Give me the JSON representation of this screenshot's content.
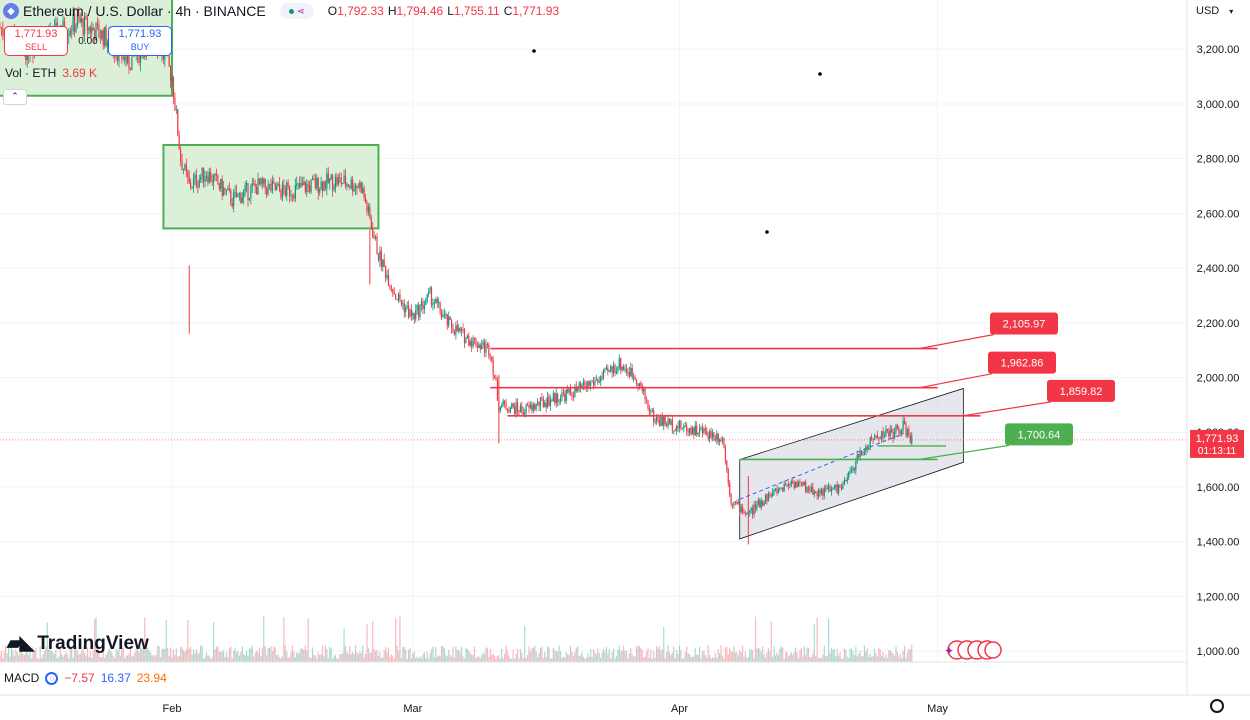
{
  "header": {
    "title": "Ethereum / U.S. Dollar · 4h · BINANCE",
    "ohlc": [
      {
        "k": "O",
        "v": "1,792.33"
      },
      {
        "k": "H",
        "v": "1,794.46"
      },
      {
        "k": "L",
        "v": "1,755.11"
      },
      {
        "k": "C",
        "v": "1,771.93"
      }
    ]
  },
  "trade": {
    "sell_price": "1,771.93",
    "sell_label": "SELL",
    "spread": "0.00",
    "buy_price": "1,771.93",
    "buy_label": "BUY"
  },
  "volume": {
    "label": "Vol · ETH",
    "value": "3.69 K"
  },
  "currency": "USD",
  "macd": {
    "label": "MACD",
    "v1": "−7.57",
    "v2": "16.37",
    "v3": "23.94"
  },
  "brand": "TradingView",
  "chart_data": {
    "type": "candlestick",
    "y_ticks": [
      1000,
      1200,
      1400,
      1600,
      1800,
      2000,
      2200,
      2400,
      2600,
      2800,
      3000,
      3200
    ],
    "y_tick_labels": [
      "1,000.00",
      "1,200.00",
      "1,400.00",
      "1,600.00",
      "1,800.00",
      "2,000.00",
      "2,200.00",
      "2,400.00",
      "2,600.00",
      "2,800.00",
      "3,000.00",
      "3,200.00"
    ],
    "ylim": [
      960,
      3380
    ],
    "x_labels": [
      {
        "label": "Feb",
        "date": "2025-02-01"
      },
      {
        "label": "Mar",
        "date": "2025-03-01"
      },
      {
        "label": "Apr",
        "date": "2025-04-01"
      },
      {
        "label": "May",
        "date": "2025-05-01"
      }
    ],
    "xlim": [
      "2025-01-12",
      "2025-05-30"
    ],
    "price_path": [
      [
        "2025-01-12",
        3280
      ],
      [
        "2025-01-15",
        3200
      ],
      [
        "2025-01-18",
        3250
      ],
      [
        "2025-01-21",
        3300
      ],
      [
        "2025-01-24",
        3250
      ],
      [
        "2025-01-27",
        3150
      ],
      [
        "2025-01-30",
        3250
      ],
      [
        "2025-02-01",
        3100
      ],
      [
        "2025-02-02",
        2800
      ],
      [
        "2025-02-03",
        2700
      ],
      [
        "2025-02-05",
        2750
      ],
      [
        "2025-02-08",
        2650
      ],
      [
        "2025-02-11",
        2700
      ],
      [
        "2025-02-14",
        2680
      ],
      [
        "2025-02-17",
        2700
      ],
      [
        "2025-02-20",
        2720
      ],
      [
        "2025-02-23",
        2700
      ],
      [
        "2025-02-25",
        2450
      ],
      [
        "2025-02-27",
        2300
      ],
      [
        "2025-03-01",
        2220
      ],
      [
        "2025-03-03",
        2300
      ],
      [
        "2025-03-05",
        2200
      ],
      [
        "2025-03-07",
        2150
      ],
      [
        "2025-03-10",
        2100
      ],
      [
        "2025-03-11",
        1900
      ],
      [
        "2025-03-14",
        1880
      ],
      [
        "2025-03-17",
        1920
      ],
      [
        "2025-03-20",
        1950
      ],
      [
        "2025-03-23",
        2000
      ],
      [
        "2025-03-25",
        2050
      ],
      [
        "2025-03-27",
        2000
      ],
      [
        "2025-03-29",
        1850
      ],
      [
        "2025-04-01",
        1820
      ],
      [
        "2025-04-04",
        1800
      ],
      [
        "2025-04-06",
        1780
      ],
      [
        "2025-04-07",
        1550
      ],
      [
        "2025-04-09",
        1500
      ],
      [
        "2025-04-11",
        1560
      ],
      [
        "2025-04-14",
        1620
      ],
      [
        "2025-04-17",
        1580
      ],
      [
        "2025-04-20",
        1600
      ],
      [
        "2025-04-22",
        1720
      ],
      [
        "2025-04-24",
        1790
      ],
      [
        "2025-04-26",
        1800
      ],
      [
        "2025-04-27",
        1820
      ],
      [
        "2025-04-28",
        1771.93
      ]
    ],
    "wicks": [
      {
        "date": "2025-01-22",
        "low": 2930
      },
      {
        "date": "2025-02-03",
        "low": 2160
      },
      {
        "date": "2025-03-11",
        "low": 1760
      },
      {
        "date": "2025-04-09",
        "low": 1390
      },
      {
        "date": "2025-02-24",
        "high": 2540
      }
    ],
    "last_price": 1771.93,
    "countdown": "01:13:11",
    "levels": [
      {
        "price": 2105.97,
        "label": "2,105.97",
        "color": "#f23645"
      },
      {
        "price": 1962.86,
        "label": "1,962.86",
        "color": "#f23645"
      },
      {
        "price": 1859.82,
        "label": "1,859.82",
        "color": "#f23645"
      },
      {
        "price": 1700.64,
        "label": "1,700.64",
        "color": "#4caf50"
      }
    ],
    "ranges": [
      {
        "from": "2025-01-10",
        "to": "2025-02-01",
        "top": 3400,
        "bottom": 3030
      },
      {
        "from": "2025-01-31",
        "to": "2025-02-25",
        "top": 2850,
        "bottom": 2545
      }
    ],
    "channel": {
      "upper": [
        [
          "2025-04-08",
          1700
        ],
        [
          "2025-05-04",
          1960
        ]
      ],
      "lower": [
        [
          "2025-04-08",
          1410
        ],
        [
          "2025-05-04",
          1690
        ]
      ]
    },
    "colors": {
      "up": "#089981",
      "down": "#f23645",
      "range_fill": "#dcefd9",
      "range_border": "#4caf50"
    }
  }
}
